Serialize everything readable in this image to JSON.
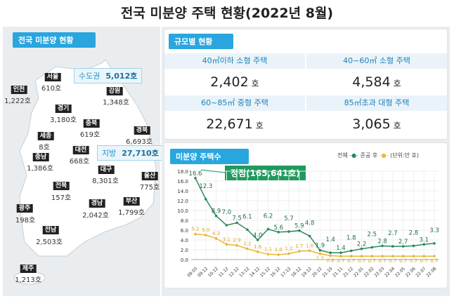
{
  "title": "전국 미분양 주택 현황(2022년 8월)",
  "map": {
    "tab": "전국 미분양 현황",
    "capital": {
      "label": "수도권",
      "value": "5,012호"
    },
    "provinces": {
      "label": "지방",
      "value": "27,710호"
    },
    "regions": [
      {
        "name": "서울",
        "value": "610호"
      },
      {
        "name": "인천",
        "value": "1,222호"
      },
      {
        "name": "경기",
        "value": "3,180호"
      },
      {
        "name": "강원",
        "value": "1,348호"
      },
      {
        "name": "충북",
        "value": "619호"
      },
      {
        "name": "경북",
        "value": "6,693호"
      },
      {
        "name": "세종",
        "value": "8호"
      },
      {
        "name": "대전",
        "value": "668호"
      },
      {
        "name": "충남",
        "value": "1,386호"
      },
      {
        "name": "대구",
        "value": "8,301호"
      },
      {
        "name": "울산",
        "value": "775호"
      },
      {
        "name": "전북",
        "value": "157호"
      },
      {
        "name": "경남",
        "value": "2,042호"
      },
      {
        "name": "부산",
        "value": "1,799호"
      },
      {
        "name": "광주",
        "value": "198호"
      },
      {
        "name": "전남",
        "value": "2,503호"
      },
      {
        "name": "제주",
        "value": "1,213호"
      }
    ]
  },
  "size": {
    "tab": "규모별 현황",
    "unit": "호",
    "cells": [
      {
        "label": "40㎡이하 소형 주택",
        "value": "2,402"
      },
      {
        "label": "40~60㎡ 소형 주택",
        "value": "4,584"
      },
      {
        "label": "60~85㎡ 중형 주택",
        "value": "22,671"
      },
      {
        "label": "85㎡초과 대형 주택",
        "value": "3,065"
      }
    ]
  },
  "chart_data": {
    "type": "line",
    "title": "미분양 주택수",
    "annotation": "정점(165,641호)",
    "unit_note": "(단위:만 호)",
    "legend_position": "top-right",
    "grid": true,
    "ylim": [
      0,
      18
    ],
    "yticks": [
      "0.0",
      "2.0",
      "4.0",
      "6.0",
      "8.0",
      "10.0",
      "12.0",
      "14.0",
      "16.0",
      "18.0"
    ],
    "categories": [
      "09.03",
      "09.12",
      "10.12",
      "11.12",
      "12.12",
      "13.12",
      "14.12",
      "15.12",
      "16.12",
      "17.12",
      "18.12",
      "19.12",
      "20.12",
      "21.10",
      "21.11",
      "21.12",
      "22.01",
      "22.02",
      "22.03",
      "22.04",
      "22.05",
      "22.06",
      "22.07",
      "22.08"
    ],
    "series": [
      {
        "name": "전체",
        "color": "#2a8a5a",
        "values": [
          16.6,
          12.3,
          8.9,
          7.0,
          7.5,
          6.1,
          4.0,
          6.2,
          5.6,
          5.7,
          5.9,
          4.8,
          1.9,
          1.4,
          1.4,
          1.8,
          2.2,
          2.5,
          2.8,
          2.7,
          2.7,
          2.8,
          3.1,
          3.3
        ]
      },
      {
        "name": "준공 후",
        "color": "#e8b830",
        "values": [
          5.2,
          5.0,
          4.3,
          3.1,
          2.9,
          2.2,
          1.6,
          1.1,
          1.0,
          1.2,
          1.7,
          1.8,
          1.2,
          0.8,
          0.7,
          0.7,
          0.7,
          0.7,
          0.7,
          0.7,
          0.7,
          0.7,
          0.7,
          0.7
        ]
      }
    ]
  }
}
